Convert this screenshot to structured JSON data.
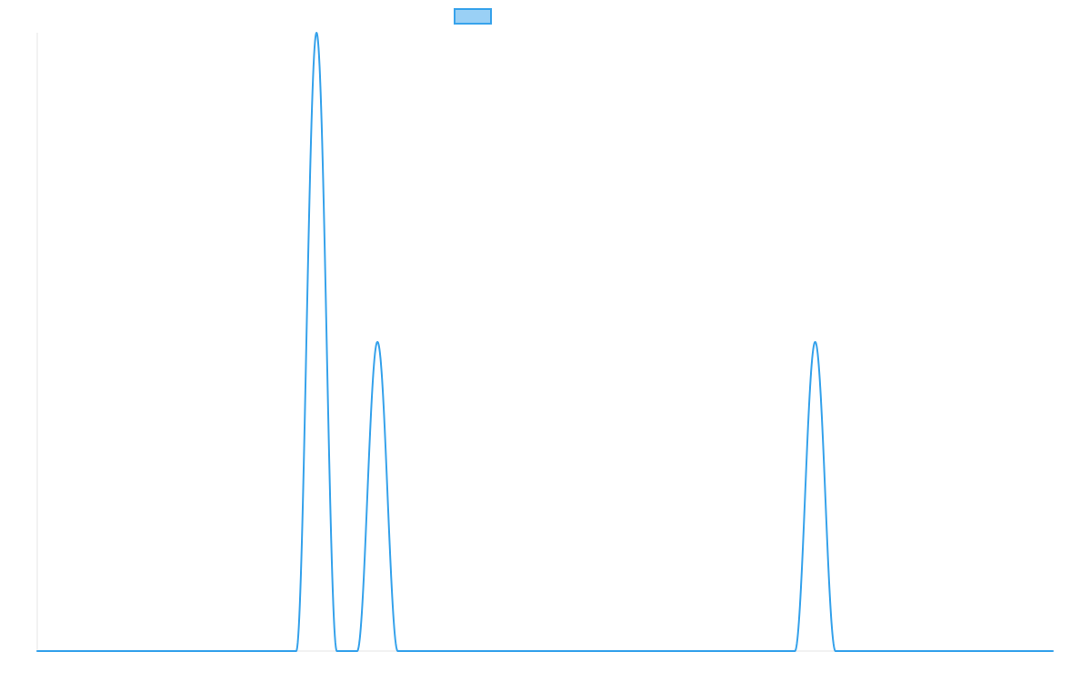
{
  "chart_data": {
    "type": "line",
    "xlim": [
      0,
      100
    ],
    "ylim": [
      0,
      1
    ],
    "grid": false,
    "legend": "top",
    "series": [
      {
        "color": "#36a2eb",
        "fill_color": "#9ad0f5",
        "x": [
          0,
          25.5,
          27.5,
          29.5,
          31.5,
          33.5,
          35.5,
          37.5,
          39.5,
          74.6,
          76.6,
          78.6,
          100
        ],
        "y": [
          0,
          0,
          1.0,
          0,
          0,
          0.5,
          0,
          0,
          0,
          0,
          0.5,
          0,
          0
        ]
      }
    ]
  }
}
